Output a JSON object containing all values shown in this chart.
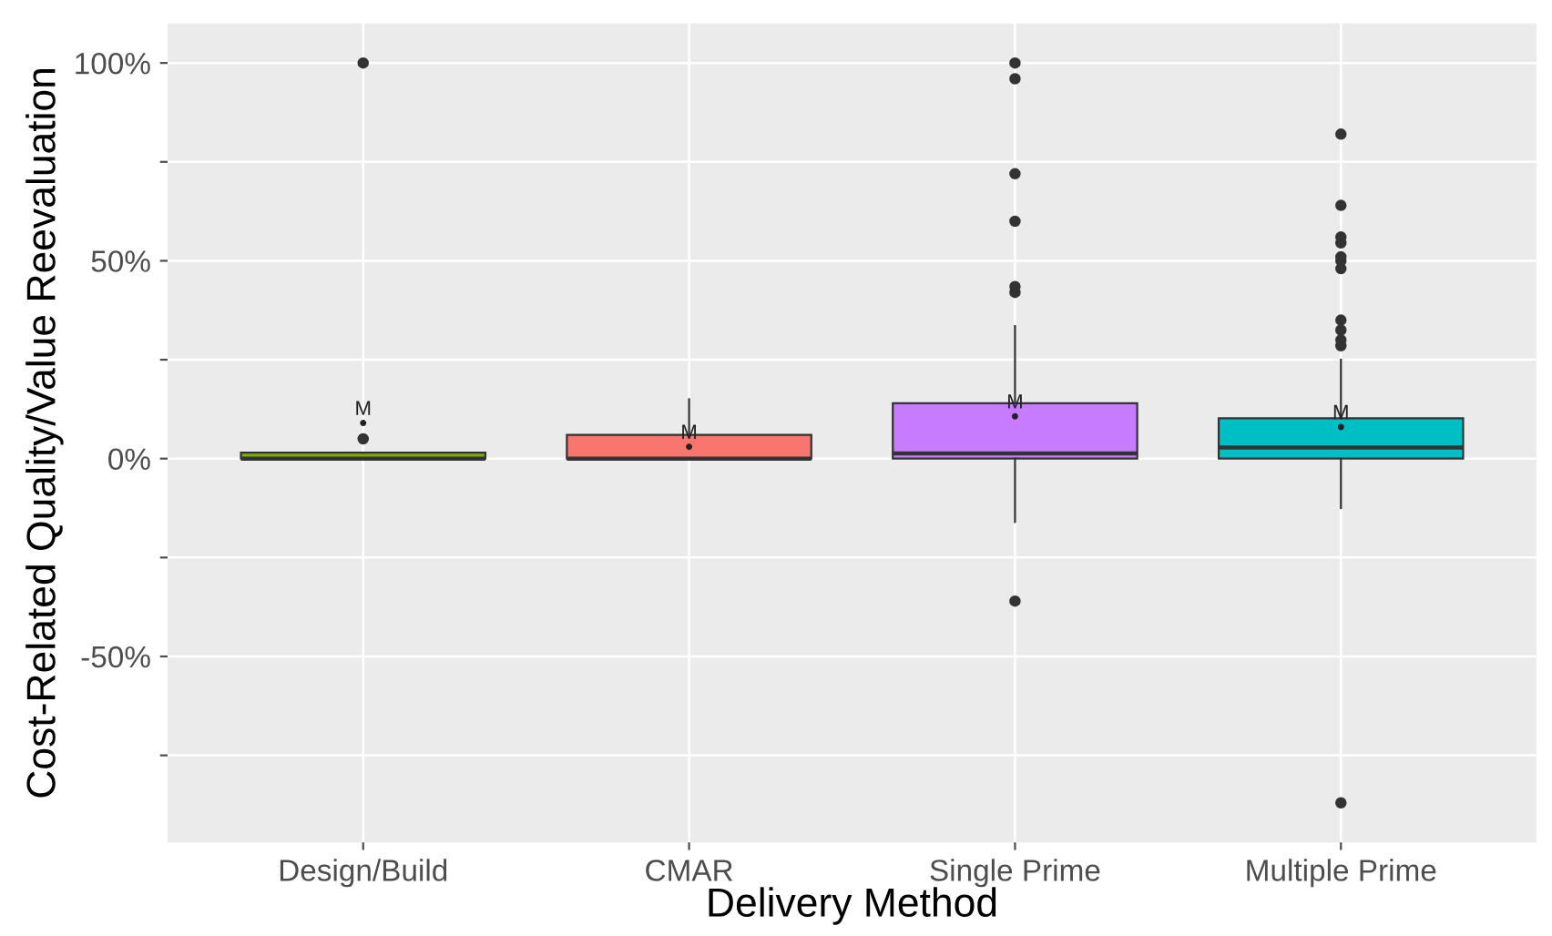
{
  "chart_data": {
    "type": "box",
    "xlabel": "Delivery Method",
    "ylabel": "Cost-Related Quality/Value Reevaluation",
    "categories": [
      "Design/Build",
      "CMAR",
      "Single Prime",
      "Multiple Prime"
    ],
    "colors": [
      "#7cae00",
      "#f8766d",
      "#c77cff",
      "#00bfc4"
    ],
    "boxes": [
      {
        "low": 0,
        "q1": 0,
        "median": 0,
        "q3": 1.5,
        "high": 1.5,
        "mean": 9,
        "outliers": [
          5,
          100
        ]
      },
      {
        "low": 0,
        "q1": 0,
        "median": 0,
        "q3": 6,
        "high": 15,
        "mean": 3
      },
      {
        "low": -16,
        "q1": 0,
        "median": 1.3,
        "q3": 14,
        "high": 33.5,
        "mean": 10.7,
        "outliers": [
          100,
          96,
          72,
          60,
          43.5,
          42,
          -36
        ]
      },
      {
        "low": -12.5,
        "q1": 0,
        "median": 2.8,
        "q3": 10.2,
        "high": 25,
        "mean": 8,
        "outliers": [
          82,
          64,
          56,
          54.5,
          51,
          50,
          48,
          35,
          32.5,
          30,
          28.5,
          -87
        ]
      }
    ],
    "annotations": [
      "M",
      "M",
      "M",
      "M"
    ],
    "ylim": [
      -97,
      110
    ],
    "yticks": [
      {
        "value": -75,
        "label": null
      },
      {
        "value": -50,
        "label": "-50%"
      },
      {
        "value": -25,
        "label": null
      },
      {
        "value": 0,
        "label": "0%"
      },
      {
        "value": 25,
        "label": null
      },
      {
        "value": 50,
        "label": "50%"
      },
      {
        "value": 75,
        "label": null
      },
      {
        "value": 100,
        "label": "100%"
      }
    ],
    "grid": true
  }
}
